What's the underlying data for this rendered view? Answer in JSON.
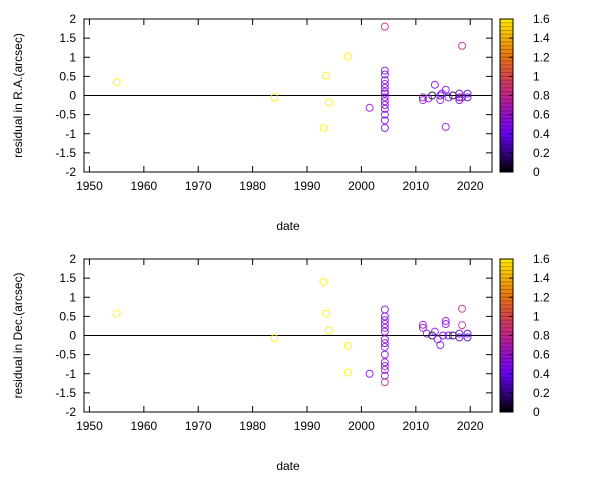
{
  "chart_data": [
    {
      "type": "scatter",
      "xlabel": "date",
      "ylabel": "residual in R.A.(arcsec)",
      "xlim": [
        1949,
        2024
      ],
      "ylim": [
        -2,
        2
      ],
      "xticks": [
        1950,
        1960,
        1970,
        1980,
        1990,
        2000,
        2010,
        2020
      ],
      "yticks": [
        -2,
        -1.5,
        -1,
        -0.5,
        0,
        0.5,
        1,
        1.5,
        2
      ],
      "colorbar": {
        "range": [
          0,
          1.6
        ],
        "ticks": [
          0,
          0.2,
          0.4,
          0.6,
          0.8,
          1,
          1.2,
          1.4,
          1.6
        ]
      },
      "points": [
        [
          1955,
          0.35,
          1.6
        ],
        [
          1984,
          -0.05,
          1.6
        ],
        [
          1993,
          -0.85,
          1.6
        ],
        [
          1993.5,
          0.52,
          1.6
        ],
        [
          1994,
          -0.18,
          1.6
        ],
        [
          1997.5,
          1.02,
          1.6
        ],
        [
          2001.5,
          -0.32,
          0.6
        ],
        [
          2004.3,
          1.8,
          0.8
        ],
        [
          2004.3,
          0.65,
          0.5
        ],
        [
          2004.3,
          0.55,
          0.5
        ],
        [
          2004.3,
          0.4,
          0.5
        ],
        [
          2004.3,
          0.3,
          0.55
        ],
        [
          2004.3,
          0.2,
          0.5
        ],
        [
          2004.3,
          0.1,
          0.55
        ],
        [
          2004.3,
          0.05,
          0.5
        ],
        [
          2004.3,
          -0.05,
          0.5
        ],
        [
          2004.3,
          -0.15,
          0.55
        ],
        [
          2004.3,
          -0.25,
          0.5
        ],
        [
          2004.3,
          -0.35,
          0.5
        ],
        [
          2004.3,
          -0.5,
          0.5
        ],
        [
          2004.3,
          -0.65,
          0.5
        ],
        [
          2004.3,
          -0.85,
          0.5
        ],
        [
          2011.3,
          -0.05,
          0.6
        ],
        [
          2011.3,
          -0.12,
          0.6
        ],
        [
          2012.3,
          -0.08,
          0.5
        ],
        [
          2013,
          0,
          0.1
        ],
        [
          2013.5,
          0.28,
          0.5
        ],
        [
          2014.5,
          0,
          0.45
        ],
        [
          2014.5,
          -0.12,
          0.5
        ],
        [
          2014.8,
          0.05,
          0.45
        ],
        [
          2015.5,
          0.15,
          0.5
        ],
        [
          2015.5,
          -0.82,
          0.6
        ],
        [
          2016,
          -0.05,
          0.45
        ],
        [
          2016.8,
          0,
          0.1
        ],
        [
          2018,
          0.05,
          0.3
        ],
        [
          2018,
          -0.05,
          0.3
        ],
        [
          2018,
          -0.12,
          0.3
        ],
        [
          2018.5,
          1.3,
          0.8
        ],
        [
          2018.5,
          -0.05,
          0.8
        ],
        [
          2019.5,
          0.05,
          0.3
        ],
        [
          2019.5,
          -0.05,
          0.3
        ]
      ]
    },
    {
      "type": "scatter",
      "xlabel": "date",
      "ylabel": "residual in Dec.(arcsec)",
      "xlim": [
        1949,
        2024
      ],
      "ylim": [
        -2,
        2
      ],
      "xticks": [
        1950,
        1960,
        1970,
        1980,
        1990,
        2000,
        2010,
        2020
      ],
      "yticks": [
        -2,
        -1.5,
        -1,
        -0.5,
        0,
        0.5,
        1,
        1.5,
        2
      ],
      "colorbar": {
        "range": [
          0,
          1.6
        ],
        "ticks": [
          0,
          0.2,
          0.4,
          0.6,
          0.8,
          1,
          1.2,
          1.4,
          1.6
        ]
      },
      "points": [
        [
          1955,
          0.57,
          1.6
        ],
        [
          1984,
          -0.07,
          1.6
        ],
        [
          1993,
          1.4,
          1.6
        ],
        [
          1993.5,
          0.57,
          1.6
        ],
        [
          1994,
          0.13,
          1.6
        ],
        [
          1997.5,
          -0.27,
          1.6
        ],
        [
          1997.5,
          -0.97,
          1.6
        ],
        [
          2001.5,
          -1.0,
          0.5
        ],
        [
          2004.3,
          0.68,
          0.5
        ],
        [
          2004.3,
          0.5,
          0.5
        ],
        [
          2004.3,
          0.4,
          0.55
        ],
        [
          2004.3,
          0.3,
          0.5
        ],
        [
          2004.3,
          0.2,
          0.55
        ],
        [
          2004.3,
          0.1,
          0.5
        ],
        [
          2004.3,
          -0.1,
          0.55
        ],
        [
          2004.3,
          -0.2,
          0.5
        ],
        [
          2004.3,
          -0.3,
          0.55
        ],
        [
          2004.3,
          -0.5,
          0.5
        ],
        [
          2004.3,
          -0.7,
          0.5
        ],
        [
          2004.3,
          -0.8,
          0.6
        ],
        [
          2004.3,
          -0.9,
          0.6
        ],
        [
          2004.3,
          -1.05,
          0.5
        ],
        [
          2004.3,
          -1.22,
          0.8
        ],
        [
          2011.3,
          0.28,
          0.6
        ],
        [
          2011.3,
          0.2,
          0.6
        ],
        [
          2012,
          0.05,
          0.5
        ],
        [
          2013,
          0,
          0.1
        ],
        [
          2013.5,
          0.1,
          0.5
        ],
        [
          2014,
          -0.1,
          0.5
        ],
        [
          2014.5,
          -0.25,
          0.5
        ],
        [
          2015,
          0,
          0.45
        ],
        [
          2015.5,
          0.38,
          0.5
        ],
        [
          2015.5,
          0.3,
          0.5
        ],
        [
          2016,
          0,
          0.45
        ],
        [
          2016.8,
          0,
          0.1
        ],
        [
          2018,
          0.05,
          0.3
        ],
        [
          2018,
          -0.05,
          0.3
        ],
        [
          2018.5,
          0.7,
          0.8
        ],
        [
          2018.5,
          0.27,
          0.8
        ],
        [
          2019.5,
          0.05,
          0.3
        ],
        [
          2019.5,
          -0.05,
          0.3
        ]
      ]
    }
  ]
}
